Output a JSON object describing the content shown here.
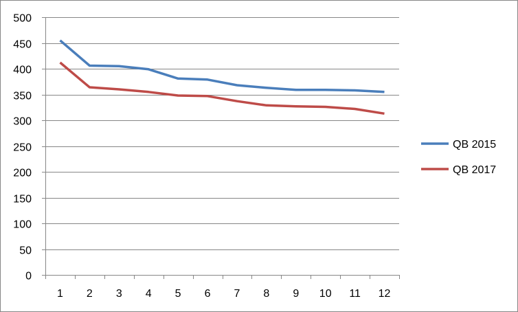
{
  "chart_data": {
    "type": "line",
    "categories": [
      "1",
      "2",
      "3",
      "4",
      "5",
      "6",
      "7",
      "8",
      "9",
      "10",
      "11",
      "12"
    ],
    "ylim": [
      0,
      500
    ],
    "yticks": [
      0,
      50,
      100,
      150,
      200,
      250,
      300,
      350,
      400,
      450,
      500
    ],
    "grid": true,
    "legend_position": "right",
    "series": [
      {
        "name": "QB 2015",
        "color": "#4A7EBB",
        "values": [
          455,
          406,
          405,
          399,
          381,
          379,
          368,
          363,
          359,
          359,
          358,
          355
        ]
      },
      {
        "name": "QB 2017",
        "color": "#BE4B48",
        "values": [
          412,
          364,
          360,
          355,
          348,
          347,
          337,
          329,
          327,
          326,
          322,
          313
        ]
      }
    ]
  }
}
